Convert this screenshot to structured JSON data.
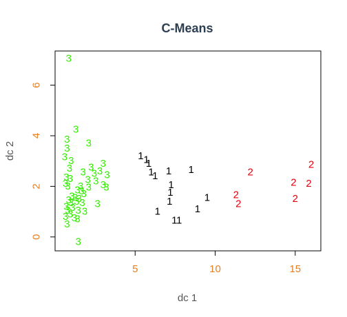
{
  "chart_data": {
    "type": "scatter",
    "title": "C-Means",
    "xlabel": "dc 1",
    "ylabel": "dc 2",
    "xlim": [
      0.0,
      16.6
    ],
    "ylim": [
      -0.55,
      7.35
    ],
    "xticks": [
      5,
      10,
      15
    ],
    "yticks": [
      0,
      2,
      4,
      6
    ],
    "tick_color": "#e67e22",
    "grid": false,
    "series": [
      {
        "label": "1",
        "color": "#000000",
        "points": [
          [
            5.35,
            3.2
          ],
          [
            5.7,
            3.05
          ],
          [
            5.85,
            2.9
          ],
          [
            6.0,
            2.55
          ],
          [
            6.25,
            2.4
          ],
          [
            7.1,
            2.6
          ],
          [
            8.5,
            2.65
          ],
          [
            7.25,
            2.05
          ],
          [
            7.2,
            1.75
          ],
          [
            7.15,
            1.4
          ],
          [
            9.5,
            1.55
          ],
          [
            8.9,
            1.1
          ],
          [
            6.4,
            1.0
          ],
          [
            7.45,
            0.65
          ],
          [
            7.75,
            0.65
          ]
        ]
      },
      {
        "label": "2",
        "color": "#e8000b",
        "points": [
          [
            16.0,
            2.85
          ],
          [
            12.2,
            2.55
          ],
          [
            14.9,
            2.15
          ],
          [
            15.85,
            2.1
          ],
          [
            11.3,
            1.65
          ],
          [
            11.45,
            1.3
          ],
          [
            15.0,
            1.5
          ]
        ]
      },
      {
        "label": "3",
        "color": "#33ee00",
        "points": [
          [
            0.85,
            7.05
          ],
          [
            1.3,
            4.25
          ],
          [
            0.75,
            3.85
          ],
          [
            2.1,
            3.7
          ],
          [
            0.75,
            3.5
          ],
          [
            0.6,
            3.15
          ],
          [
            3.0,
            2.9
          ],
          [
            1.0,
            3.0
          ],
          [
            2.25,
            2.75
          ],
          [
            0.9,
            2.7
          ],
          [
            2.8,
            2.6
          ],
          [
            1.75,
            2.55
          ],
          [
            2.45,
            2.5
          ],
          [
            3.25,
            2.45
          ],
          [
            0.7,
            2.35
          ],
          [
            0.95,
            2.3
          ],
          [
            2.05,
            2.25
          ],
          [
            2.55,
            2.2
          ],
          [
            0.65,
            2.1
          ],
          [
            0.8,
            2.0
          ],
          [
            1.6,
            2.0
          ],
          [
            2.1,
            1.95
          ],
          [
            3.0,
            2.05
          ],
          [
            3.2,
            1.95
          ],
          [
            1.4,
            1.85
          ],
          [
            1.65,
            1.8
          ],
          [
            1.8,
            1.7
          ],
          [
            1.05,
            1.6
          ],
          [
            1.25,
            1.55
          ],
          [
            0.85,
            1.45
          ],
          [
            1.5,
            1.5
          ],
          [
            1.35,
            1.4
          ],
          [
            1.0,
            1.35
          ],
          [
            1.7,
            1.35
          ],
          [
            0.7,
            1.2
          ],
          [
            1.1,
            1.15
          ],
          [
            1.45,
            1.05
          ],
          [
            2.65,
            1.3
          ],
          [
            0.8,
            1.05
          ],
          [
            1.85,
            1.0
          ],
          [
            0.95,
            0.9
          ],
          [
            0.65,
            0.8
          ],
          [
            1.2,
            0.75
          ],
          [
            1.4,
            0.7
          ],
          [
            0.75,
            0.5
          ],
          [
            1.45,
            -0.2
          ]
        ]
      }
    ]
  }
}
